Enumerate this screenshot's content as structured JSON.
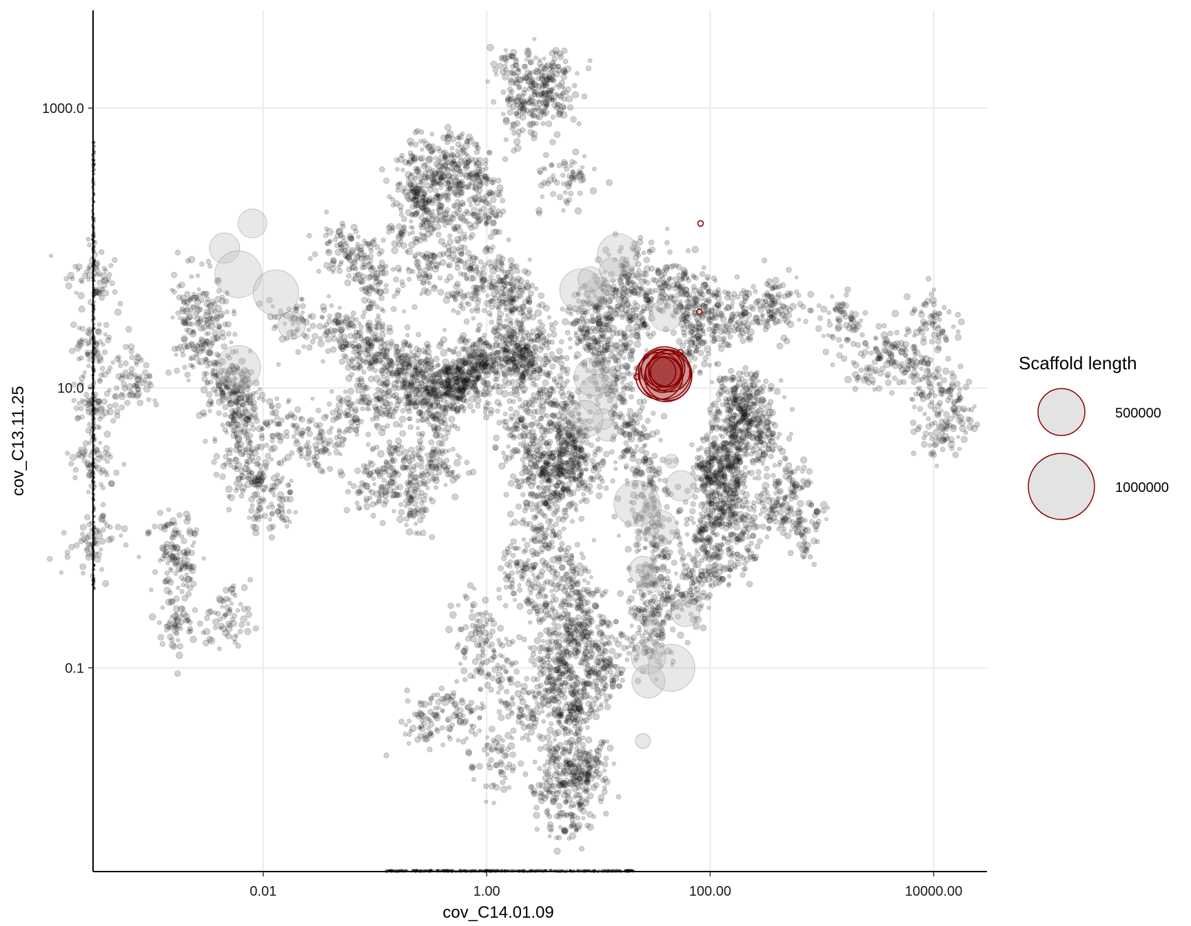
{
  "chart_data": {
    "type": "scatter",
    "x_scale": "log",
    "y_scale": "log",
    "xlabel": "cov_C14.01.09",
    "ylabel": "cov_C13.11.25",
    "xlim": [
      0.0003,
      30000
    ],
    "ylim": [
      0.0035,
      5000
    ],
    "xticks": [
      0.01,
      1,
      100,
      10000
    ],
    "xtick_labels": [
      "0.01",
      "1.00",
      "100.00",
      "10000.00"
    ],
    "yticks": [
      0.1,
      10,
      1000
    ],
    "ytick_labels": [
      "0.1",
      "10.0",
      "1000.0"
    ],
    "grid": true,
    "legend": {
      "title": "Scaffold length",
      "placement": "right",
      "entries": [
        {
          "label": "500000",
          "size_value": 500000
        },
        {
          "label": "1000000",
          "size_value": 1000000
        }
      ]
    },
    "colors": {
      "background_points": "#000000",
      "highlight_points": "#8b0000",
      "bubble_fill": "#d9d9d9",
      "grid": "#ebebeb",
      "axis": "#000000"
    },
    "series": [
      {
        "role": "all scaffolds",
        "color": "#000000",
        "points": [
          [
            0.0003,
            3.0
          ],
          [
            0.0003,
            20
          ],
          [
            0.0003,
            0.8
          ],
          [
            0.0003,
            60
          ],
          [
            0.0003,
            8
          ],
          [
            0.0016,
            0.5
          ],
          [
            0.0016,
            0.8
          ],
          [
            0.0016,
            0.2
          ],
          [
            0.0007,
            12
          ],
          [
            0.0023,
            40
          ],
          [
            0.0035,
            30
          ],
          [
            0.0025,
            20
          ],
          [
            0.0045,
            10
          ],
          [
            0.005,
            12
          ],
          [
            0.0063,
            8
          ],
          [
            0.0066,
            6
          ],
          [
            0.007,
            3
          ],
          [
            0.0085,
            2
          ],
          [
            0.012,
            1.5
          ],
          [
            0.005,
            0.25
          ],
          [
            0.02,
            30
          ],
          [
            0.05,
            25
          ],
          [
            0.08,
            18
          ],
          [
            0.1,
            20
          ],
          [
            0.15,
            16
          ],
          [
            0.2,
            14
          ],
          [
            0.3,
            12
          ],
          [
            0.4,
            11
          ],
          [
            0.6,
            13
          ],
          [
            0.8,
            15
          ],
          [
            1.0,
            17
          ],
          [
            0.015,
            5
          ],
          [
            0.03,
            4
          ],
          [
            0.06,
            6
          ],
          [
            0.1,
            8
          ],
          [
            0.2,
            9
          ],
          [
            0.3,
            7
          ],
          [
            0.4,
            10
          ],
          [
            0.5,
            9
          ],
          [
            0.7,
            11
          ],
          [
            0.9,
            12
          ],
          [
            0.15,
            3
          ],
          [
            0.25,
            2.5
          ],
          [
            0.4,
            3
          ],
          [
            0.1,
            2
          ],
          [
            0.2,
            1.5
          ],
          [
            0.2,
            300
          ],
          [
            0.3,
            400
          ],
          [
            0.5,
            350
          ],
          [
            0.6,
            450
          ],
          [
            0.4,
            250
          ],
          [
            0.8,
            280
          ],
          [
            0.3,
            200
          ],
          [
            0.2,
            150
          ],
          [
            0.5,
            120
          ],
          [
            1.2,
            60
          ],
          [
            1.5,
            50
          ],
          [
            2.0,
            40
          ],
          [
            1.4,
            20
          ],
          [
            2.2,
            15
          ],
          [
            1.8,
            18
          ],
          [
            3.0,
            20
          ],
          [
            2.5,
            12
          ],
          [
            4.0,
            8
          ],
          [
            5.0,
            6
          ],
          [
            6.0,
            4
          ],
          [
            3.5,
            3
          ],
          [
            2.0,
            5
          ],
          [
            3.0,
            1.5
          ],
          [
            4.0,
            2.5
          ],
          [
            5.0,
            1.8
          ],
          [
            2.5,
            3
          ],
          [
            6.0,
            3.5
          ],
          [
            8.0,
            2.5
          ],
          [
            2.0,
            0.5
          ],
          [
            3.0,
            0.8
          ],
          [
            5.0,
            0.5
          ],
          [
            7.0,
            0.3
          ],
          [
            3.0,
            0.3
          ],
          [
            4.0,
            0.15
          ],
          [
            5.0,
            0.1
          ],
          [
            6.0,
            0.05
          ],
          [
            7.0,
            0.2
          ],
          [
            8.0,
            0.15
          ],
          [
            10.0,
            0.08
          ],
          [
            12.0,
            0.12
          ],
          [
            4.0,
            0.08
          ],
          [
            6.0,
            0.06
          ],
          [
            5.0,
            0.03
          ],
          [
            6.0,
            0.02
          ],
          [
            7.0,
            0.015
          ],
          [
            8.0,
            0.02
          ],
          [
            5.5,
            0.008
          ],
          [
            15,
            10
          ],
          [
            20,
            5
          ],
          [
            25,
            3
          ],
          [
            30,
            1.5
          ],
          [
            30,
            0.8
          ],
          [
            30,
            0.4
          ],
          [
            30,
            0.25
          ],
          [
            28,
            0.15
          ],
          [
            120,
            3
          ],
          [
            130,
            2
          ],
          [
            110,
            1.2
          ],
          [
            150,
            4
          ],
          [
            170,
            6
          ],
          [
            200,
            8
          ],
          [
            180,
            5
          ],
          [
            140,
            2.5
          ],
          [
            220,
            9
          ],
          [
            120,
            0.7
          ],
          [
            160,
            1.5
          ],
          [
            100,
            2.5
          ],
          [
            250,
            6
          ],
          [
            300,
            4
          ],
          [
            9.0,
            40
          ],
          [
            8.0,
            30
          ],
          [
            10.0,
            20
          ],
          [
            15,
            50
          ],
          [
            20,
            70
          ],
          [
            25,
            35
          ],
          [
            12,
            15
          ],
          [
            18,
            25
          ],
          [
            60,
            45
          ],
          [
            80,
            30
          ],
          [
            70,
            20
          ],
          [
            45,
            60
          ],
          [
            100,
            40
          ],
          [
            150,
            30
          ],
          [
            2.0,
            900
          ],
          [
            3.0,
            1200
          ],
          [
            1.8,
            1800
          ],
          [
            4.0,
            1600
          ],
          [
            3.5,
            1500
          ],
          [
            1.0,
            200
          ],
          [
            5.0,
            300
          ],
          [
            0.1,
            50
          ],
          [
            0.08,
            80
          ],
          [
            0.05,
            100
          ],
          [
            0.3,
            70
          ],
          [
            0.7,
            50
          ],
          [
            300,
            40
          ],
          [
            400,
            35
          ],
          [
            1500,
            30
          ],
          [
            3000,
            15
          ],
          [
            5000,
            20
          ],
          [
            12000,
            5
          ],
          [
            14000,
            8
          ],
          [
            8000,
            12
          ],
          [
            10000,
            30
          ],
          [
            60,
            0.3
          ],
          [
            80,
            0.5
          ],
          [
            90,
            1
          ],
          [
            200,
            0.8
          ],
          [
            400,
            1.5
          ],
          [
            500,
            2
          ],
          [
            700,
            1
          ],
          [
            1.2,
            0.02
          ],
          [
            2.0,
            0.05
          ],
          [
            3.5,
            0.015
          ],
          [
            0.6,
            0.05
          ],
          [
            0.8,
            0.2
          ],
          [
            1.2,
            0.1
          ],
          [
            0.3,
            0.04
          ]
        ]
      },
      {
        "role": "large scaffolds",
        "color": "#000000",
        "points": [
          [
            0.0023,
            35
          ],
          [
            0.0045,
            100
          ],
          [
            0.006,
            65
          ],
          [
            0.008,
            150
          ],
          [
            0.013,
            48
          ],
          [
            0.018,
            28
          ],
          [
            0.006,
            14
          ],
          [
            10,
            50
          ],
          [
            7,
            50
          ],
          [
            8.5,
            60
          ],
          [
            15,
            90
          ],
          [
            13,
            70
          ],
          [
            10,
            9
          ],
          [
            12,
            5
          ],
          [
            9,
            12
          ],
          [
            11,
            6
          ],
          [
            7.5,
            6
          ],
          [
            30,
            1.4
          ],
          [
            35,
            1.0
          ],
          [
            30,
            0.4
          ],
          [
            28,
            0.12
          ],
          [
            30,
            0.2
          ],
          [
            28,
            0.08
          ],
          [
            25,
            0.03
          ],
          [
            40,
            33
          ],
          [
            45,
            3
          ],
          [
            55,
            2
          ],
          [
            45,
            0.1
          ],
          [
            60,
            0.25
          ],
          [
            22,
            1.5
          ],
          [
            25,
            0.5
          ]
        ]
      },
      {
        "role": "highlighted scaffolds",
        "color": "#8b0000",
        "points": [
          [
            40,
            13
          ],
          [
            38,
            12.5
          ],
          [
            37,
            13.5
          ],
          [
            42,
            12
          ],
          [
            39,
            12.8
          ],
          [
            36,
            13
          ],
          [
            41,
            13.8
          ],
          [
            43,
            13.2
          ],
          [
            35,
            12.2
          ],
          [
            40,
            12.3
          ],
          [
            82,
            150
          ],
          [
            80,
            35
          ],
          [
            22,
            12
          ],
          [
            54,
            18
          ]
        ]
      }
    ]
  }
}
